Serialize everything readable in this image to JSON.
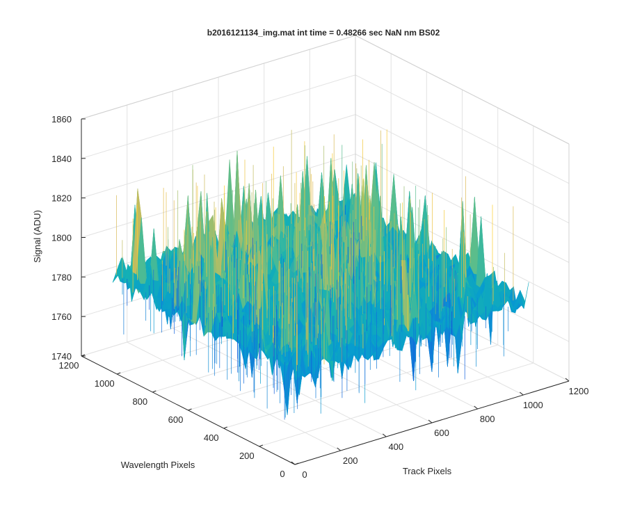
{
  "chart_data": {
    "type": "surface",
    "title": "b2016121134_img.mat int time = 0.48266 sec  NaN nm BS02",
    "xlabel": "Track Pixels",
    "ylabel": "Wavelength Pixels",
    "zlabel": "Signal (ADU)",
    "xlim": [
      0,
      1200
    ],
    "ylim": [
      0,
      1200
    ],
    "zlim": [
      1740,
      1860
    ],
    "x_ticks": [
      "0",
      "200",
      "400",
      "600",
      "800",
      "1000",
      "1200"
    ],
    "y_ticks": [
      "0",
      "200",
      "400",
      "600",
      "800",
      "1000",
      "1200"
    ],
    "z_ticks": [
      "1740",
      "1760",
      "1780",
      "1800",
      "1820",
      "1840",
      "1860"
    ],
    "data_extent": {
      "x": [
        0,
        1024
      ],
      "y": [
        0,
        1024
      ]
    },
    "signal_mean": 1787,
    "signal_range": [
      1745,
      1851
    ],
    "colormap": "parula",
    "grid": true,
    "legend": "none"
  }
}
